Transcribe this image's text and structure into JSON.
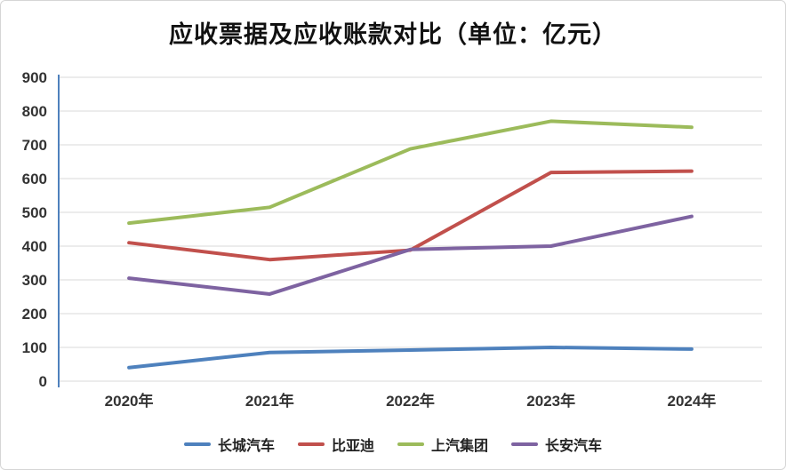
{
  "chart_data": {
    "type": "line",
    "title": "应收票据及应收账款对比（单位：亿元）",
    "categories": [
      "2020年",
      "2021年",
      "2022年",
      "2023年",
      "2024年"
    ],
    "series": [
      {
        "name": "长城汽车",
        "color": "#4e81bd",
        "values": [
          40,
          85,
          92,
          100,
          95
        ]
      },
      {
        "name": "比亚迪",
        "color": "#c1504c",
        "values": [
          410,
          360,
          388,
          618,
          622
        ]
      },
      {
        "name": "上汽集团",
        "color": "#9cbb5b",
        "values": [
          468,
          515,
          688,
          770,
          752
        ]
      },
      {
        "name": "长安汽车",
        "color": "#7e63a1",
        "values": [
          305,
          258,
          390,
          400,
          488
        ]
      }
    ],
    "ylim": [
      0,
      900
    ],
    "ytick_step": 100,
    "grid": true,
    "legend_position": "bottom",
    "axis_color": "#4f81bd",
    "grid_color": "#d9d9d9",
    "tick_label_color": "#333333",
    "line_width": 4
  }
}
